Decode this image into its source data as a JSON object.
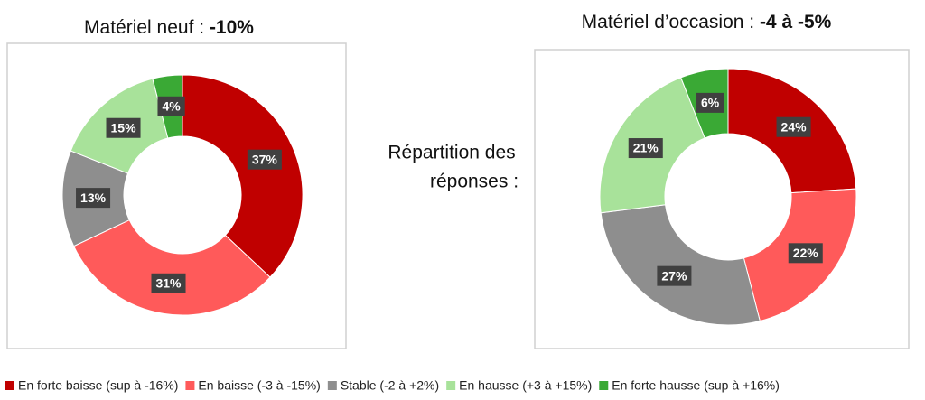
{
  "chart_data": [
    {
      "type": "donut",
      "title": "Matériel neuf :",
      "title_highlight": "-10%",
      "values": [
        37,
        31,
        13,
        15,
        4
      ],
      "value_labels": [
        "37%",
        "31%",
        "13%",
        "15%",
        "4%"
      ]
    },
    {
      "type": "donut",
      "title": "Matériel d’occasion :",
      "title_highlight": "-4 à -5%",
      "values": [
        24,
        22,
        27,
        21,
        6
      ],
      "value_labels": [
        "24%",
        "22%",
        "27%",
        "21%",
        "6%"
      ]
    }
  ],
  "side_note": [
    "Répartition des",
    "réponses  :"
  ],
  "legend": {
    "labels": [
      "En forte baisse (sup à -16%)",
      "En baisse (-3 à -15%)",
      "Stable (-2  à +2%)",
      "En hausse (+3 à +15%)",
      "En forte hausse (sup à +16%)"
    ],
    "colors": [
      "#c00000",
      "#ff5a5a",
      "#8e8e8e",
      "#a8e29a",
      "#3aa935"
    ]
  }
}
